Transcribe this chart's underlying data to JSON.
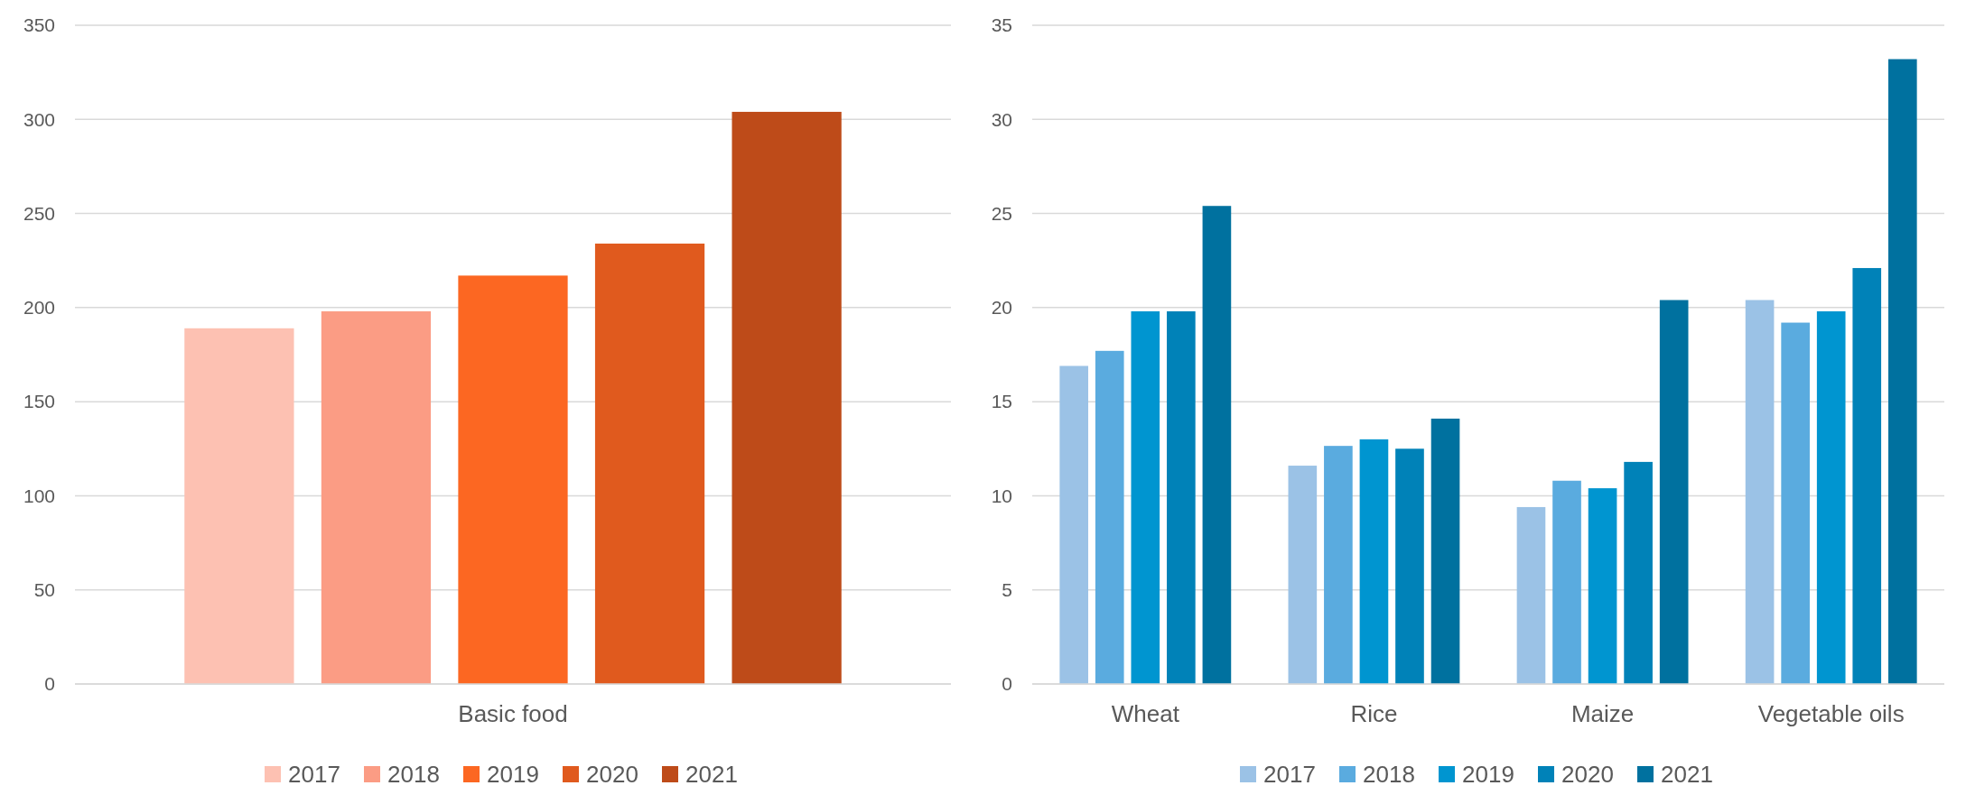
{
  "chart_data": [
    {
      "type": "bar",
      "categories": [
        "Basic food"
      ],
      "series": [
        {
          "name": "2017",
          "color": "#fdc1b2",
          "values": [
            189
          ]
        },
        {
          "name": "2018",
          "color": "#fb9c84",
          "values": [
            198
          ]
        },
        {
          "name": "2019",
          "color": "#fc6722",
          "values": [
            217
          ]
        },
        {
          "name": "2020",
          "color": "#e05a1e",
          "values": [
            234
          ]
        },
        {
          "name": "2021",
          "color": "#be4b19",
          "values": [
            304
          ]
        }
      ],
      "ylim": [
        0,
        350
      ],
      "yticks": [
        0,
        50,
        100,
        150,
        200,
        250,
        300,
        350
      ],
      "grid": "y",
      "legend": "bottom"
    },
    {
      "type": "bar",
      "categories": [
        "Wheat",
        "Rice",
        "Maize",
        "Vegetable oils"
      ],
      "series": [
        {
          "name": "2017",
          "color": "#9bc2e6",
          "values": [
            16.9,
            11.6,
            9.4,
            20.4
          ]
        },
        {
          "name": "2018",
          "color": "#5aabdf",
          "values": [
            17.7,
            12.65,
            10.8,
            19.2
          ]
        },
        {
          "name": "2019",
          "color": "#0095d0",
          "values": [
            19.8,
            13.0,
            10.4,
            19.8
          ]
        },
        {
          "name": "2020",
          "color": "#0082b8",
          "values": [
            19.8,
            12.5,
            11.8,
            22.1
          ]
        },
        {
          "name": "2021",
          "color": "#00719f",
          "values": [
            25.4,
            14.1,
            20.4,
            33.2
          ]
        }
      ],
      "ylim": [
        0,
        35
      ],
      "yticks": [
        0,
        5,
        10,
        15,
        20,
        25,
        30,
        35
      ],
      "grid": "y",
      "legend": "bottom"
    }
  ]
}
